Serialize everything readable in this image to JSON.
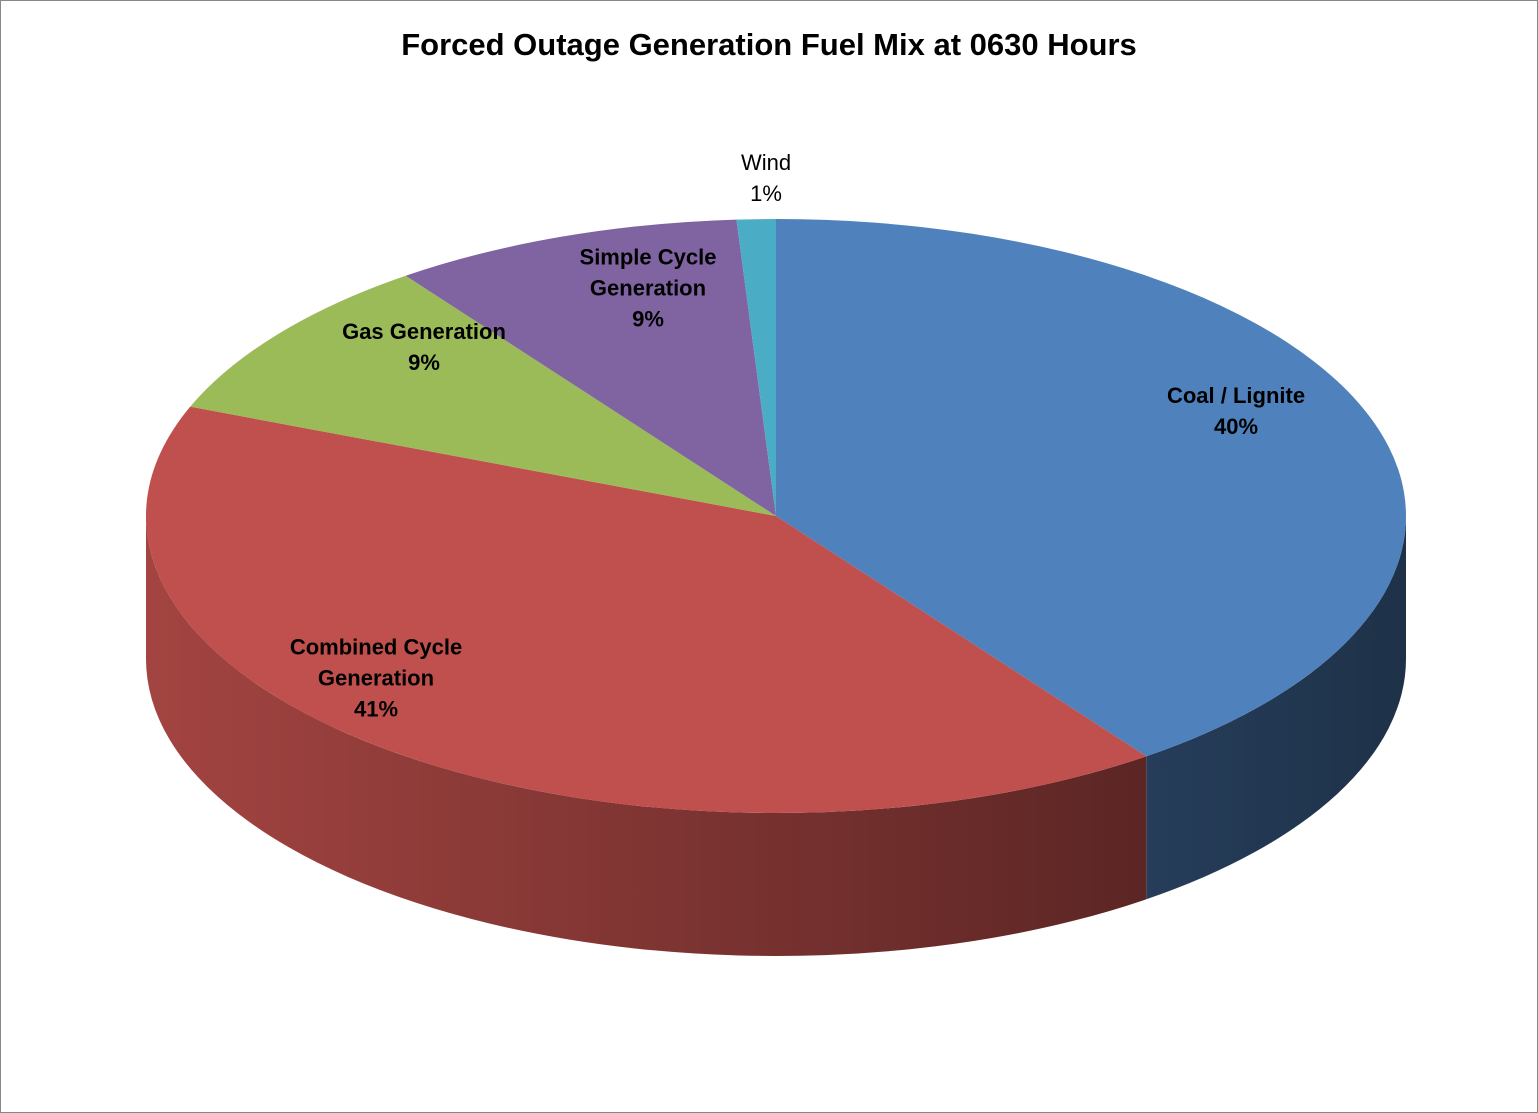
{
  "chart_data": {
    "type": "pie3d",
    "title": "Forced Outage Generation Fuel Mix at 0630 Hours",
    "categories": [
      "Coal / Lignite",
      "Combined Cycle Generation",
      "Gas Generation",
      "Simple Cycle Generation",
      "Wind"
    ],
    "values": [
      40,
      41,
      9,
      9,
      1
    ],
    "value_labels": [
      "40%",
      "41%",
      "9%",
      "9%",
      "1%"
    ],
    "colors": [
      "#4f81bd",
      "#c0504d",
      "#9bbb59",
      "#8064a2",
      "#4bacc6"
    ]
  }
}
